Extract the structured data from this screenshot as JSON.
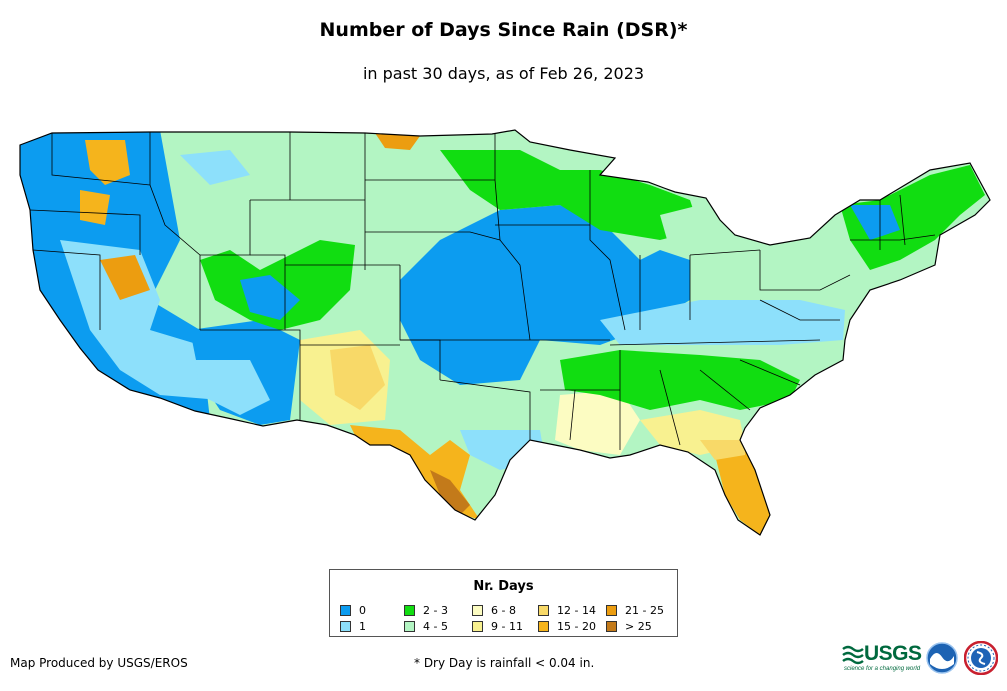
{
  "title": "Number of Days Since Rain (DSR)*",
  "subtitle": "in past 30 days, as of Feb 26, 2023",
  "legend": {
    "title": "Nr. Days",
    "items": [
      {
        "label": "0",
        "color": "#0c9cf0"
      },
      {
        "label": "1",
        "color": "#8de0fb"
      },
      {
        "label": "2 - 3",
        "color": "#11dd11"
      },
      {
        "label": "4 - 5",
        "color": "#b3f5c3"
      },
      {
        "label": "6 - 8",
        "color": "#fcfcc2"
      },
      {
        "label": "9 - 11",
        "color": "#f8f190"
      },
      {
        "label": "12 - 14",
        "color": "#f8d968"
      },
      {
        "label": "15 - 20",
        "color": "#f5b41c"
      },
      {
        "label": "21 - 25",
        "color": "#ec9d10"
      },
      {
        "label": "> 25",
        "color": "#c37a1a"
      }
    ]
  },
  "credit": "Map Produced by USGS/EROS",
  "footnote": "* Dry Day is rainfall < 0.04 in.",
  "logos": {
    "usgs": {
      "wordmark": "USGS",
      "tagline": "science for a changing world"
    },
    "noaa": {
      "icon": "noaa-seal-icon"
    },
    "nws": {
      "icon": "nws-seal-icon"
    }
  }
}
